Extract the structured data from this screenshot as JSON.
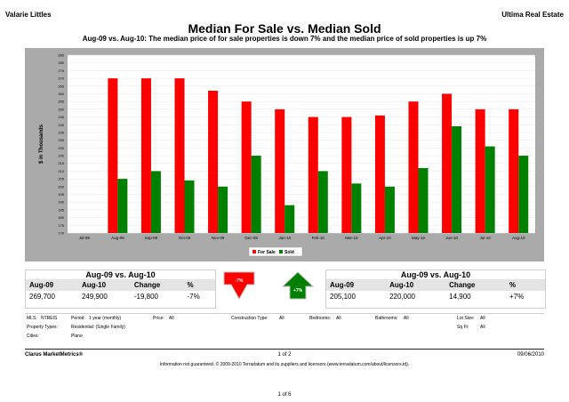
{
  "header": {
    "agent": "Valarie Littles",
    "brokerage": "Ultima Real Estate",
    "title": "Median For Sale vs. Median Sold",
    "subtitle": "Aug-09 vs. Aug-10:  The median price of for sale properties is down 7% and the median price of sold properties is up 7%"
  },
  "chart_data": {
    "type": "bar",
    "ylabel": "$ in Thousands",
    "ylim": [
      170,
      285
    ],
    "yticks": [
      170,
      175,
      180,
      185,
      190,
      195,
      200,
      205,
      210,
      215,
      220,
      225,
      230,
      235,
      240,
      245,
      250,
      255,
      260,
      265,
      270,
      275,
      280,
      285
    ],
    "categories": [
      "Jul-09",
      "Aug-09",
      "Sep-09",
      "Oct-09",
      "Nov-09",
      "Dec-09",
      "Jan-10",
      "Feb-10",
      "Mar-10",
      "Apr-10",
      "May-10",
      "Jun-10",
      "Jul-10",
      "Aug-10"
    ],
    "series": [
      {
        "name": "For Sale",
        "color": "#ff0000",
        "values": [
          null,
          270,
          270,
          270,
          262,
          255,
          250,
          245,
          245,
          246,
          255,
          260,
          250,
          250
        ]
      },
      {
        "name": "Sold",
        "color": "#008000",
        "values": [
          null,
          205,
          210,
          204,
          200,
          220,
          188,
          210,
          202,
          200,
          212,
          239,
          226,
          220
        ]
      }
    ],
    "legend_position": "bottom-center"
  },
  "for_sale_stats": {
    "title": "Aug-09 vs. Aug-10",
    "headers": [
      "Aug-09",
      "Aug-10",
      "Change",
      "%"
    ],
    "values": [
      "269,700",
      "249,900",
      "-19,800",
      "-7%"
    ],
    "indicator": "-7%",
    "indicator_color": "#ff0000"
  },
  "sold_stats": {
    "title": "Aug-09 vs. Aug-10",
    "headers": [
      "Aug-09",
      "Aug-10",
      "Change",
      "%"
    ],
    "values": [
      "205,100",
      "220,000",
      "14,900",
      "+7%"
    ],
    "indicator": "+7%",
    "indicator_color": "#008000"
  },
  "filters": {
    "mls_label": "MLS:",
    "mls_value": "NTREIS",
    "period_label": "Period:",
    "period_value": "1 year (monthly)",
    "price_label": "Price:",
    "price_value": "All",
    "construction_label": "Construction Type:",
    "construction_value": "All",
    "bedrooms_label": "Bedrooms:",
    "bedrooms_value": "All",
    "bathrooms_label": "Bathrooms:",
    "bathrooms_value": "All",
    "lotsize_label": "Lot Size:",
    "lotsize_value": "All",
    "proptype_label": "Property Types:",
    "proptype_value": "Residential: (Single Family)",
    "sqft_label": "Sq Ft:",
    "sqft_value": "All",
    "cities_label": "Cities:",
    "cities_value": "Plano"
  },
  "footer": {
    "company": "Clarus MarketMetrics®",
    "page": "1 of 2",
    "date": "09/06/2010",
    "disclaimer": "Information not guaranteed.  © 2009-2010 Terradatum and its suppliers and licensors (www.terradatum.com/about/licensors.td).",
    "doc_page": "1 of 6"
  }
}
